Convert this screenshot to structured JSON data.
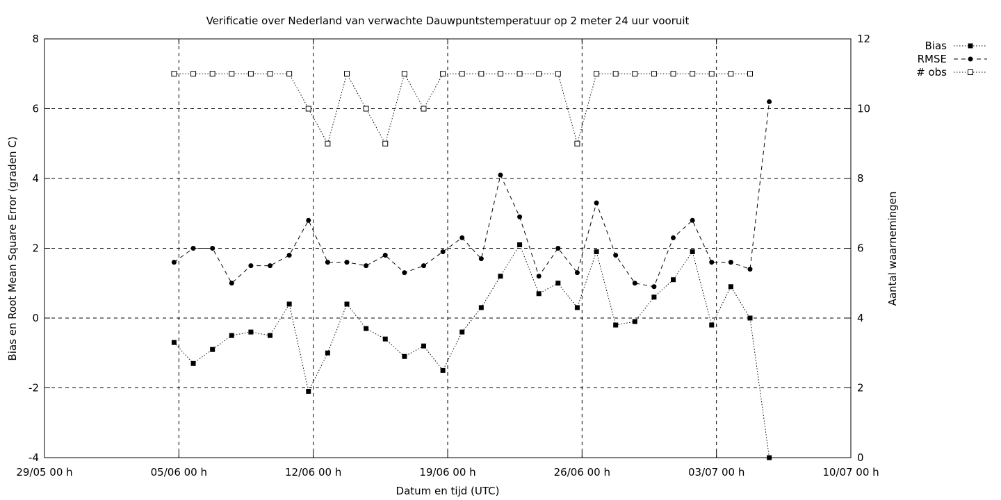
{
  "chart_data": {
    "type": "line",
    "title": "Verificatie over Nederland van verwachte Dauwpuntstemperatuur op 2 meter 24 uur vooruit",
    "xlabel": "Datum en tijd (UTC)",
    "ylabel": "Bias en Root Mean Square Error (graden C)",
    "y2label": "Aantal waarnemingen",
    "ylim": [
      -4,
      8
    ],
    "y2lim": [
      0,
      12
    ],
    "yticks": [
      "-4",
      "-2",
      "0",
      "2",
      "4",
      "6",
      "8"
    ],
    "y2ticks": [
      "0",
      "2",
      "4",
      "6",
      "8",
      "10",
      "12"
    ],
    "xlim": [
      "2024-05-29",
      "2024-07-10"
    ],
    "xticks": [
      "29/05 00 h",
      "05/06 00 h",
      "12/06 00 h",
      "19/06 00 h",
      "26/06 00 h",
      "03/07 00 h",
      "10/07 00 h"
    ],
    "grid": true,
    "legend_position": "top-right, outside plot",
    "x": [
      "2024-06-04 18:00",
      "2024-06-05 18:00",
      "2024-06-06 18:00",
      "2024-06-07 18:00",
      "2024-06-08 18:00",
      "2024-06-09 18:00",
      "2024-06-10 18:00",
      "2024-06-11 18:00",
      "2024-06-12 18:00",
      "2024-06-13 18:00",
      "2024-06-14 18:00",
      "2024-06-15 18:00",
      "2024-06-16 18:00",
      "2024-06-17 18:00",
      "2024-06-18 18:00",
      "2024-06-19 18:00",
      "2024-06-20 18:00",
      "2024-06-21 18:00",
      "2024-06-22 18:00",
      "2024-06-23 18:00",
      "2024-06-24 18:00",
      "2024-06-25 18:00",
      "2024-06-26 18:00",
      "2024-06-27 18:00",
      "2024-06-28 18:00",
      "2024-06-29 18:00",
      "2024-06-30 18:00",
      "2024-07-01 18:00",
      "2024-07-02 18:00",
      "2024-07-03 18:00",
      "2024-07-04 18:00",
      "2024-07-05 18:00"
    ],
    "series": [
      {
        "name": "Bias",
        "axis": "left",
        "marker": "filled-square",
        "dash": "dotted",
        "values": [
          -0.7,
          -1.3,
          -0.9,
          -0.5,
          -0.4,
          -0.5,
          0.4,
          -2.1,
          -1.0,
          0.4,
          -0.3,
          -0.6,
          -1.1,
          -0.8,
          -1.5,
          -0.4,
          0.3,
          1.2,
          2.1,
          0.7,
          1.0,
          0.3,
          1.9,
          -0.2,
          -0.1,
          0.6,
          1.1,
          1.9,
          -0.2,
          0.9,
          0.0,
          -4.0
        ]
      },
      {
        "name": "RMSE",
        "axis": "left",
        "marker": "filled-circle",
        "dash": "dashed",
        "values": [
          1.6,
          2.0,
          2.0,
          1.0,
          1.5,
          1.5,
          1.8,
          2.8,
          1.6,
          1.6,
          1.5,
          1.8,
          1.3,
          1.5,
          1.9,
          2.3,
          1.7,
          4.1,
          2.9,
          1.2,
          2.0,
          1.3,
          3.3,
          1.8,
          1.0,
          0.9,
          2.3,
          2.8,
          1.6,
          1.6,
          1.4,
          6.2
        ]
      },
      {
        "name": "# obs",
        "axis": "right",
        "marker": "open-square",
        "dash": "dotted",
        "values": [
          11,
          11,
          11,
          11,
          11,
          11,
          11,
          10,
          9,
          11,
          10,
          9,
          11,
          10,
          11,
          11,
          11,
          11,
          11,
          11,
          11,
          9,
          11,
          11,
          11,
          11,
          11,
          11,
          11,
          11,
          11,
          null
        ]
      }
    ],
    "colors": {
      "lines": "#000000",
      "background": "#ffffff"
    }
  }
}
